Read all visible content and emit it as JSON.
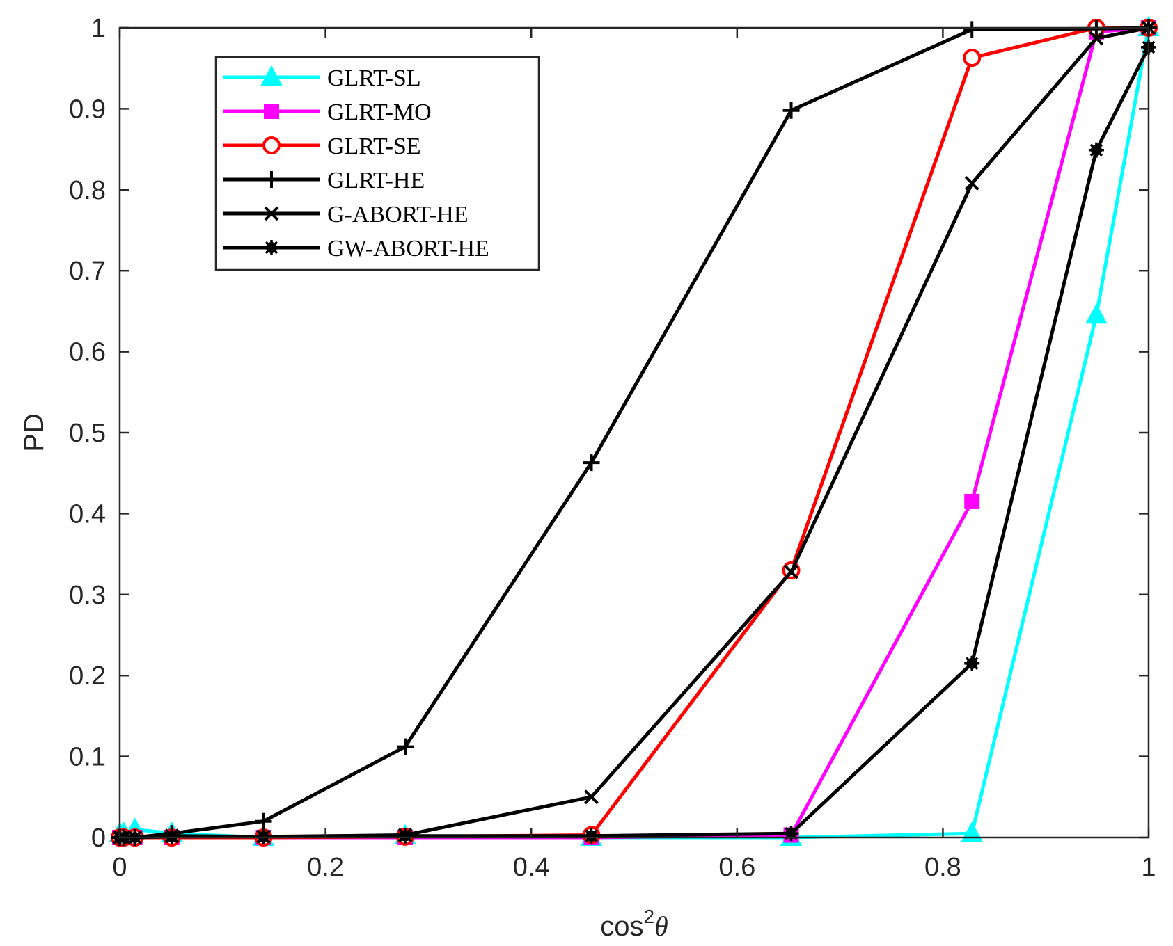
{
  "chart_data": {
    "type": "line",
    "title": "",
    "xlabel": {
      "base": "cos",
      "sup": "2",
      "var": "θ"
    },
    "ylabel": "PD",
    "xlim": [
      0,
      1
    ],
    "ylim": [
      0,
      1
    ],
    "xticks": [
      0,
      0.2,
      0.4,
      0.6,
      0.8,
      1
    ],
    "xtick_labels": [
      "0",
      "0.2",
      "0.4",
      "0.6",
      "0.8",
      "1"
    ],
    "yticks": [
      0,
      0.1,
      0.2,
      0.3,
      0.4,
      0.5,
      0.6,
      0.7,
      0.8,
      0.9,
      1
    ],
    "ytick_labels": [
      "0",
      "0.1",
      "0.2",
      "0.3",
      "0.4",
      "0.5",
      "0.6",
      "0.7",
      "0.8",
      "0.9",
      "1"
    ],
    "grid": false,
    "legend_position": "top-left",
    "x": [
      0,
      0.0039,
      0.0147,
      0.0506,
      0.1397,
      0.2774,
      0.4584,
      0.6526,
      0.8283,
      0.9492,
      1
    ],
    "series": [
      {
        "name": "GLRT-SL",
        "color": "#00FFFF",
        "marker": "triangle",
        "values": [
          0.005,
          0.005,
          0.01,
          0.005,
          0,
          0.002,
          0,
          0,
          0.005,
          0.645,
          1
        ]
      },
      {
        "name": "GLRT-MO",
        "color": "#FF00FF",
        "marker": "square",
        "values": [
          0,
          0,
          0,
          0,
          0,
          0,
          0,
          0.003,
          0.415,
          0.995,
          1
        ]
      },
      {
        "name": "GLRT-SE",
        "color": "#FF0000",
        "marker": "circle",
        "values": [
          0,
          0,
          0,
          0,
          0,
          0.001,
          0.003,
          0.33,
          0.963,
          1,
          1
        ]
      },
      {
        "name": "GLRT-HE",
        "color": "#000000",
        "marker": "plus",
        "values": [
          0,
          0,
          0,
          0.005,
          0.02,
          0.112,
          0.463,
          0.898,
          0.998,
          0.999,
          1
        ]
      },
      {
        "name": "G-ABORT-HE",
        "color": "#000000",
        "marker": "x",
        "values": [
          0,
          0,
          0,
          0.002,
          0.001,
          0.003,
          0.05,
          0.328,
          0.808,
          0.987,
          1
        ]
      },
      {
        "name": "GW-ABORT-HE",
        "color": "#000000",
        "marker": "asterisk-dot",
        "values": [
          0,
          0,
          0,
          0.001,
          0.001,
          0.002,
          0.002,
          0.005,
          0.215,
          0.849,
          0.976
        ]
      }
    ]
  }
}
